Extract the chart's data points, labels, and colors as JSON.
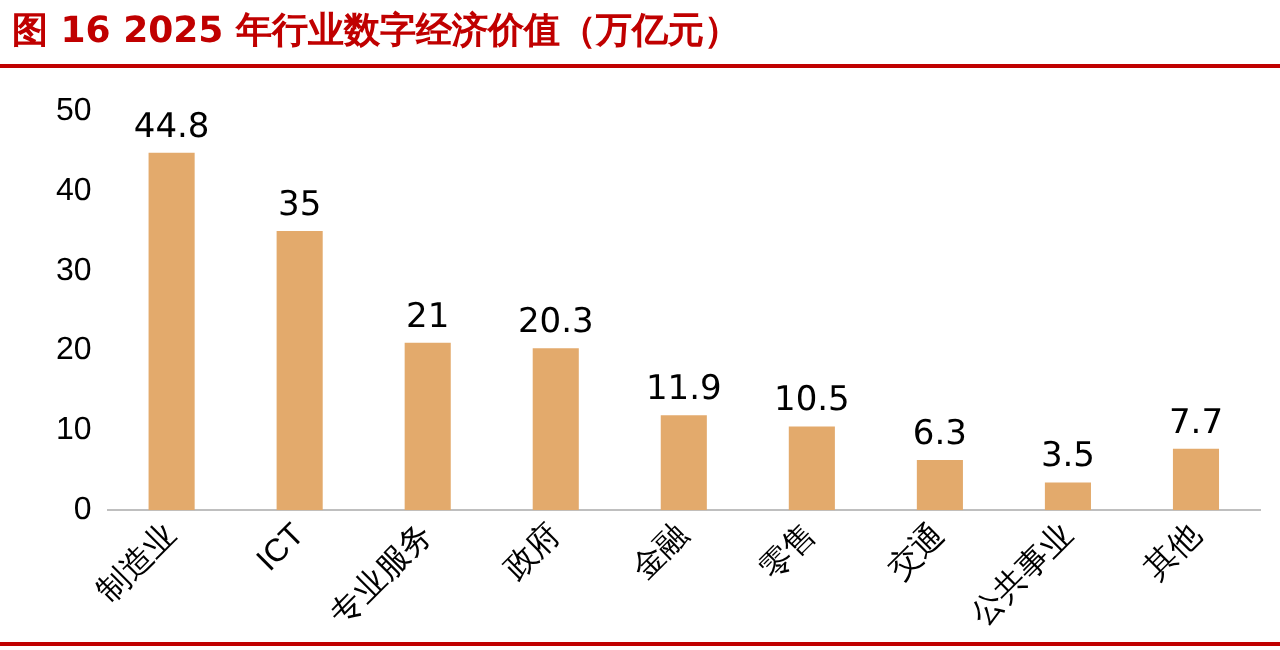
{
  "chart_data": {
    "type": "bar",
    "title": "图 16 2025 年行业数字经济价值（万亿元）",
    "categories": [
      "制造业",
      "ICT",
      "专业服务",
      "政府",
      "金融",
      "零售",
      "交通",
      "公共事业",
      "其他"
    ],
    "values": [
      44.8,
      35,
      21,
      20.3,
      11.9,
      10.5,
      6.3,
      3.5,
      7.7
    ],
    "color": "#e3aa6c",
    "ylim": [
      0,
      50
    ],
    "yticks": [
      0,
      10,
      20,
      30,
      40,
      50
    ],
    "grid": false,
    "legend": false,
    "data_labels": true
  }
}
